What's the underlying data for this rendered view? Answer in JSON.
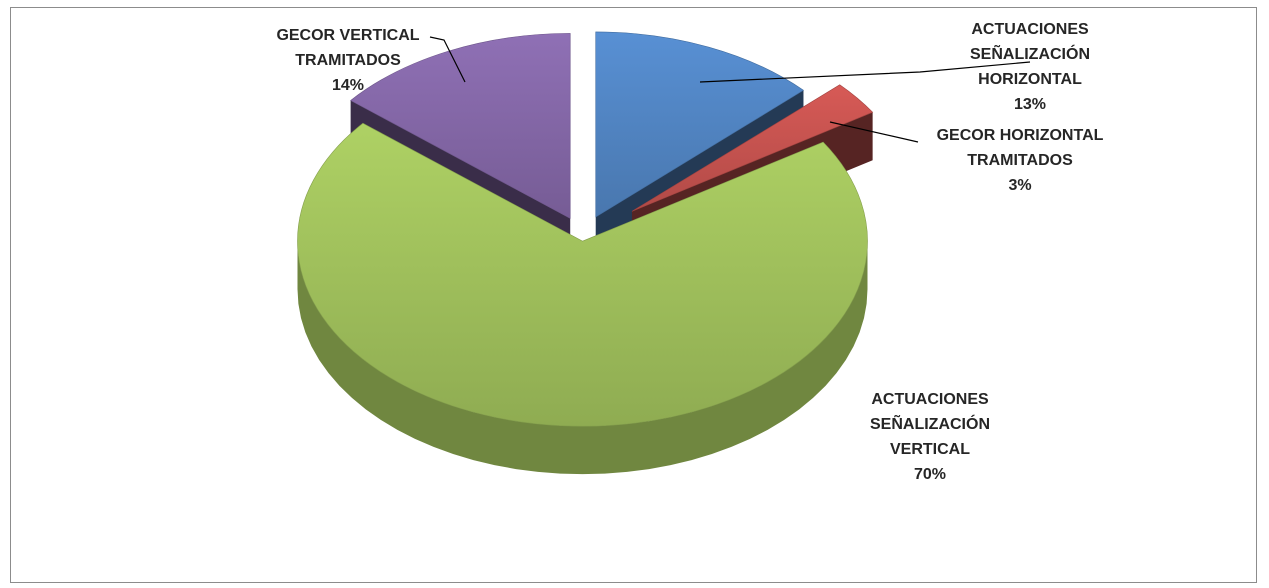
{
  "chart_data": {
    "type": "pie",
    "style": "3d-exploded",
    "legend": "none",
    "slices": [
      {
        "lines": [
          "ACTUACIONES",
          "SEÑALIZACIÓN",
          "HORIZONTAL"
        ],
        "value": 13,
        "percent_label": "13%",
        "color": "#4f81bd"
      },
      {
        "lines": [
          "GECOR HORIZONTAL",
          "TRAMITADOS"
        ],
        "value": 3,
        "percent_label": "3%",
        "color": "#c0504d"
      },
      {
        "lines": [
          "ACTUACIONES",
          "SEÑALIZACIÓN",
          "VERTICAL"
        ],
        "value": 70,
        "percent_label": "70%",
        "color": "#9bbb59"
      },
      {
        "lines": [
          "GECOR VERTICAL",
          "TRAMITADOS"
        ],
        "value": 14,
        "percent_label": "14%",
        "color": "#8064a2"
      }
    ]
  }
}
